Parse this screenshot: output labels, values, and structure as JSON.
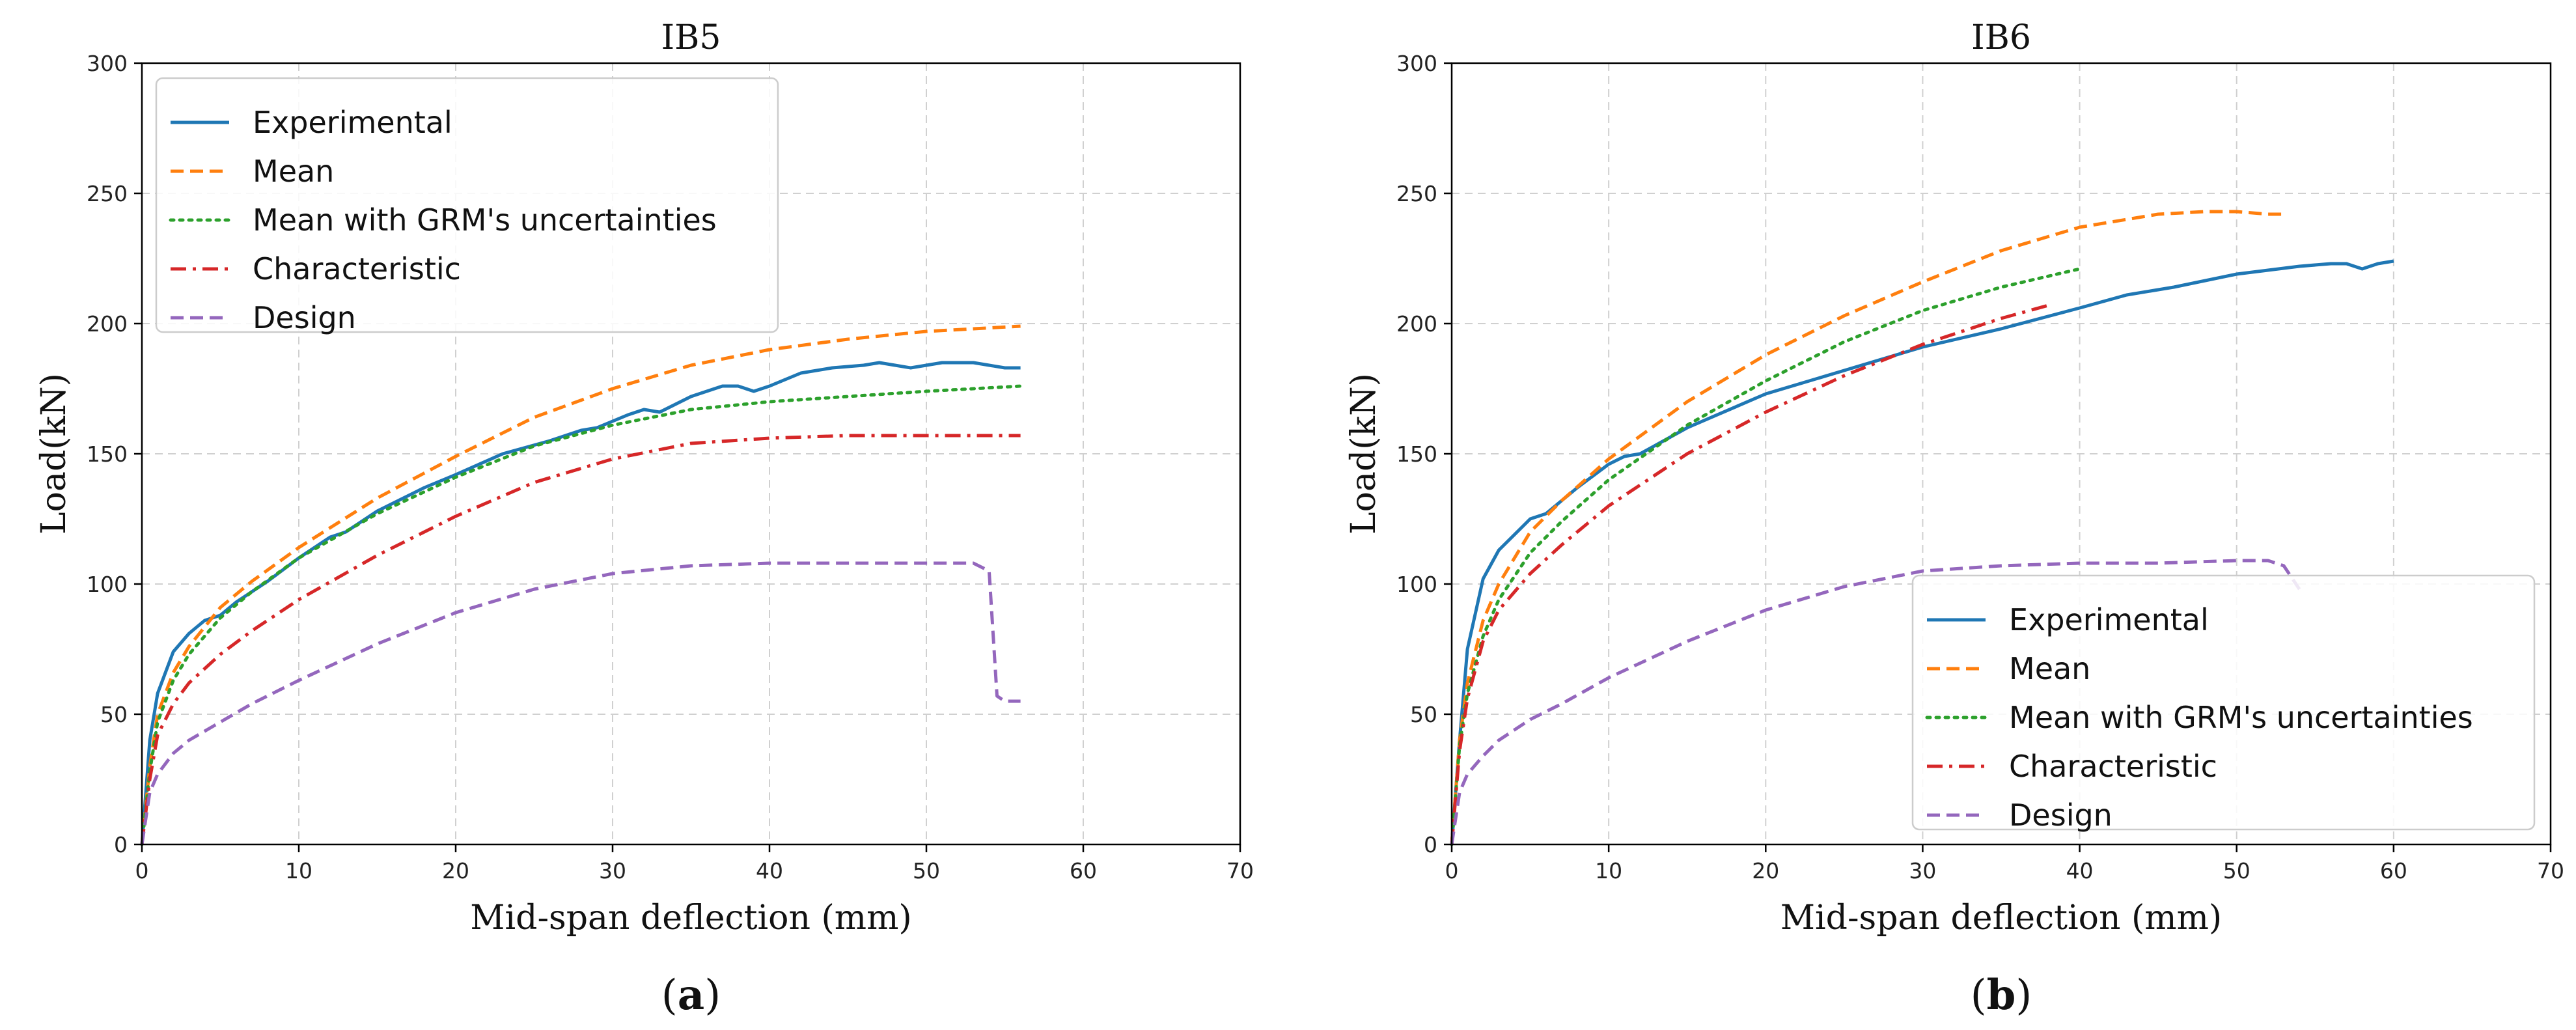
{
  "chart_data": [
    {
      "type": "line",
      "panel": "(a)",
      "panel_letter": "a",
      "title": "IB5",
      "xlabel": "Mid-span deflection (mm)",
      "ylabel": "Load(kN)",
      "xlim": [
        0,
        70
      ],
      "ylim": [
        0,
        300
      ],
      "xticks": [
        0,
        10,
        20,
        30,
        40,
        50,
        60,
        70
      ],
      "yticks": [
        0,
        50,
        100,
        150,
        200,
        250,
        300
      ],
      "grid": true,
      "legend_position": "top-left",
      "series": [
        {
          "name": "Experimental",
          "color": "#1f77b4",
          "style": "solid",
          "x": [
            0,
            0.5,
            1,
            2,
            3,
            4,
            5,
            6,
            8,
            10,
            12,
            13,
            15,
            18,
            20,
            23,
            26,
            28,
            29,
            31,
            32,
            33,
            35,
            37,
            38,
            39,
            40,
            42,
            44,
            46,
            47,
            48,
            49,
            50,
            51,
            53,
            54,
            55,
            56
          ],
          "y": [
            0,
            40,
            58,
            74,
            81,
            86,
            88,
            93,
            101,
            110,
            118,
            120,
            128,
            137,
            142,
            150,
            155,
            159,
            160,
            165,
            167,
            166,
            172,
            176,
            176,
            174,
            176,
            181,
            183,
            184,
            185,
            184,
            183,
            184,
            185,
            185,
            184,
            183,
            183
          ]
        },
        {
          "name": "Mean",
          "color": "#ff7f0e",
          "style": "dashed",
          "x": [
            0,
            0.5,
            1,
            2,
            3,
            5,
            7,
            10,
            15,
            20,
            25,
            30,
            35,
            40,
            45,
            50,
            53,
            56
          ],
          "y": [
            0,
            30,
            50,
            66,
            76,
            91,
            101,
            114,
            133,
            149,
            164,
            175,
            184,
            190,
            194,
            197,
            198,
            199
          ]
        },
        {
          "name": "Mean with GRM's uncertainties",
          "color": "#2ca02c",
          "style": "dotted",
          "x": [
            0,
            0.5,
            1,
            2,
            3,
            5,
            7,
            10,
            15,
            20,
            25,
            30,
            35,
            40,
            45,
            50,
            56
          ],
          "y": [
            0,
            28,
            47,
            63,
            73,
            87,
            97,
            110,
            127,
            141,
            153,
            161,
            167,
            170,
            172,
            174,
            176
          ]
        },
        {
          "name": "Characteristic",
          "color": "#d62728",
          "style": "dashdot",
          "x": [
            0,
            0.5,
            1,
            2,
            3,
            5,
            7,
            10,
            15,
            20,
            25,
            30,
            35,
            40,
            45,
            50,
            56
          ],
          "y": [
            0,
            25,
            42,
            54,
            62,
            73,
            82,
            94,
            111,
            126,
            139,
            148,
            154,
            156,
            157,
            157,
            157
          ]
        },
        {
          "name": "Design",
          "color": "#9467bd",
          "style": "dashed",
          "x": [
            0,
            0.5,
            1,
            2,
            3,
            5,
            7,
            10,
            15,
            20,
            25,
            30,
            35,
            40,
            45,
            50,
            52,
            53,
            54,
            54.5,
            55,
            56
          ],
          "y": [
            0,
            20,
            27,
            35,
            40,
            47,
            54,
            63,
            77,
            89,
            98,
            104,
            107,
            108,
            108,
            108,
            108,
            108,
            105,
            57,
            55,
            55
          ]
        }
      ]
    },
    {
      "type": "line",
      "panel": "(b)",
      "panel_letter": "b",
      "title": "IB6",
      "xlabel": "Mid-span deflection (mm)",
      "ylabel": "Load(kN)",
      "xlim": [
        0,
        70
      ],
      "ylim": [
        0,
        300
      ],
      "xticks": [
        0,
        10,
        20,
        30,
        40,
        50,
        60,
        70
      ],
      "yticks": [
        0,
        50,
        100,
        150,
        200,
        250,
        300
      ],
      "grid": true,
      "legend_position": "bottom-right",
      "series": [
        {
          "name": "Experimental",
          "color": "#1f77b4",
          "style": "solid",
          "x": [
            0,
            0.5,
            1,
            2,
            3,
            4,
            5,
            6,
            8,
            10,
            11,
            12,
            15,
            20,
            25,
            30,
            35,
            40,
            43,
            46,
            50,
            54,
            56,
            57,
            58,
            59,
            60
          ],
          "y": [
            0,
            40,
            75,
            102,
            113,
            119,
            125,
            127,
            137,
            146,
            149,
            150,
            160,
            173,
            182,
            191,
            198,
            206,
            211,
            214,
            219,
            222,
            223,
            223,
            221,
            223,
            224
          ]
        },
        {
          "name": "Mean",
          "color": "#ff7f0e",
          "style": "dashed",
          "x": [
            0,
            0.5,
            1,
            2,
            3,
            5,
            7,
            10,
            15,
            20,
            25,
            30,
            35,
            40,
            45,
            48,
            50,
            52,
            53
          ],
          "y": [
            0,
            40,
            62,
            86,
            100,
            120,
            132,
            148,
            170,
            188,
            203,
            216,
            228,
            237,
            242,
            243,
            243,
            242,
            242
          ]
        },
        {
          "name": "Mean with GRM's uncertainties",
          "color": "#2ca02c",
          "style": "dotted",
          "x": [
            0,
            0.5,
            1,
            2,
            3,
            5,
            7,
            10,
            15,
            20,
            25,
            30,
            35,
            40
          ],
          "y": [
            0,
            38,
            58,
            80,
            94,
            112,
            124,
            140,
            161,
            178,
            193,
            205,
            214,
            221
          ]
        },
        {
          "name": "Characteristic",
          "color": "#d62728",
          "style": "dashdot",
          "x": [
            0,
            0.5,
            1,
            2,
            3,
            5,
            7,
            10,
            15,
            20,
            25,
            30,
            35,
            38
          ],
          "y": [
            0,
            36,
            56,
            78,
            90,
            104,
            115,
            130,
            150,
            166,
            180,
            192,
            202,
            207
          ]
        },
        {
          "name": "Design",
          "color": "#9467bd",
          "style": "dashed",
          "x": [
            0,
            0.5,
            1,
            2,
            3,
            5,
            7,
            10,
            15,
            20,
            25,
            30,
            35,
            40,
            45,
            50,
            52,
            53,
            54
          ],
          "y": [
            0,
            20,
            27,
            34,
            40,
            48,
            54,
            64,
            78,
            90,
            99,
            105,
            107,
            108,
            108,
            109,
            109,
            107,
            98
          ]
        }
      ]
    }
  ]
}
